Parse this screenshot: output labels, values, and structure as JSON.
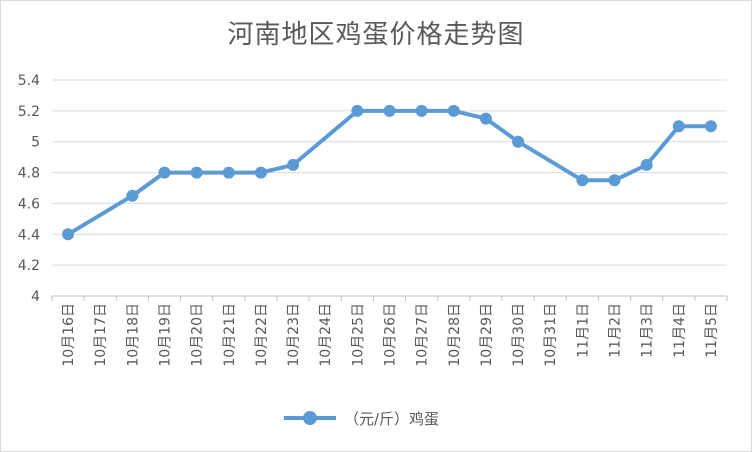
{
  "chart_data": {
    "type": "line",
    "title": "河南地区鸡蛋价格走势图",
    "categories": [
      "10月16日",
      "10月17日",
      "10月18日",
      "10月19日",
      "10月20日",
      "10月21日",
      "10月22日",
      "10月23日",
      "10月24日",
      "10月25日",
      "10月26日",
      "10月27日",
      "10月28日",
      "10月29日",
      "10月30日",
      "10月31日",
      "11月1日",
      "11月2日",
      "11月3日",
      "11月4日",
      "11月5日"
    ],
    "yticks": [
      "5.4",
      "5.2",
      "5",
      "4.8",
      "4.6",
      "4.4",
      "4.2",
      "4"
    ],
    "ylim": [
      4,
      5.4
    ],
    "grid": true,
    "legend_position": "bottom",
    "color": "#5b9bd5",
    "series": [
      {
        "name": "（元/斤）鸡蛋",
        "values": [
          4.4,
          null,
          4.65,
          4.8,
          4.8,
          4.8,
          4.8,
          4.85,
          null,
          5.2,
          5.2,
          5.2,
          5.2,
          5.15,
          5.0,
          null,
          4.75,
          4.75,
          4.85,
          5.1,
          5.1
        ]
      }
    ]
  }
}
